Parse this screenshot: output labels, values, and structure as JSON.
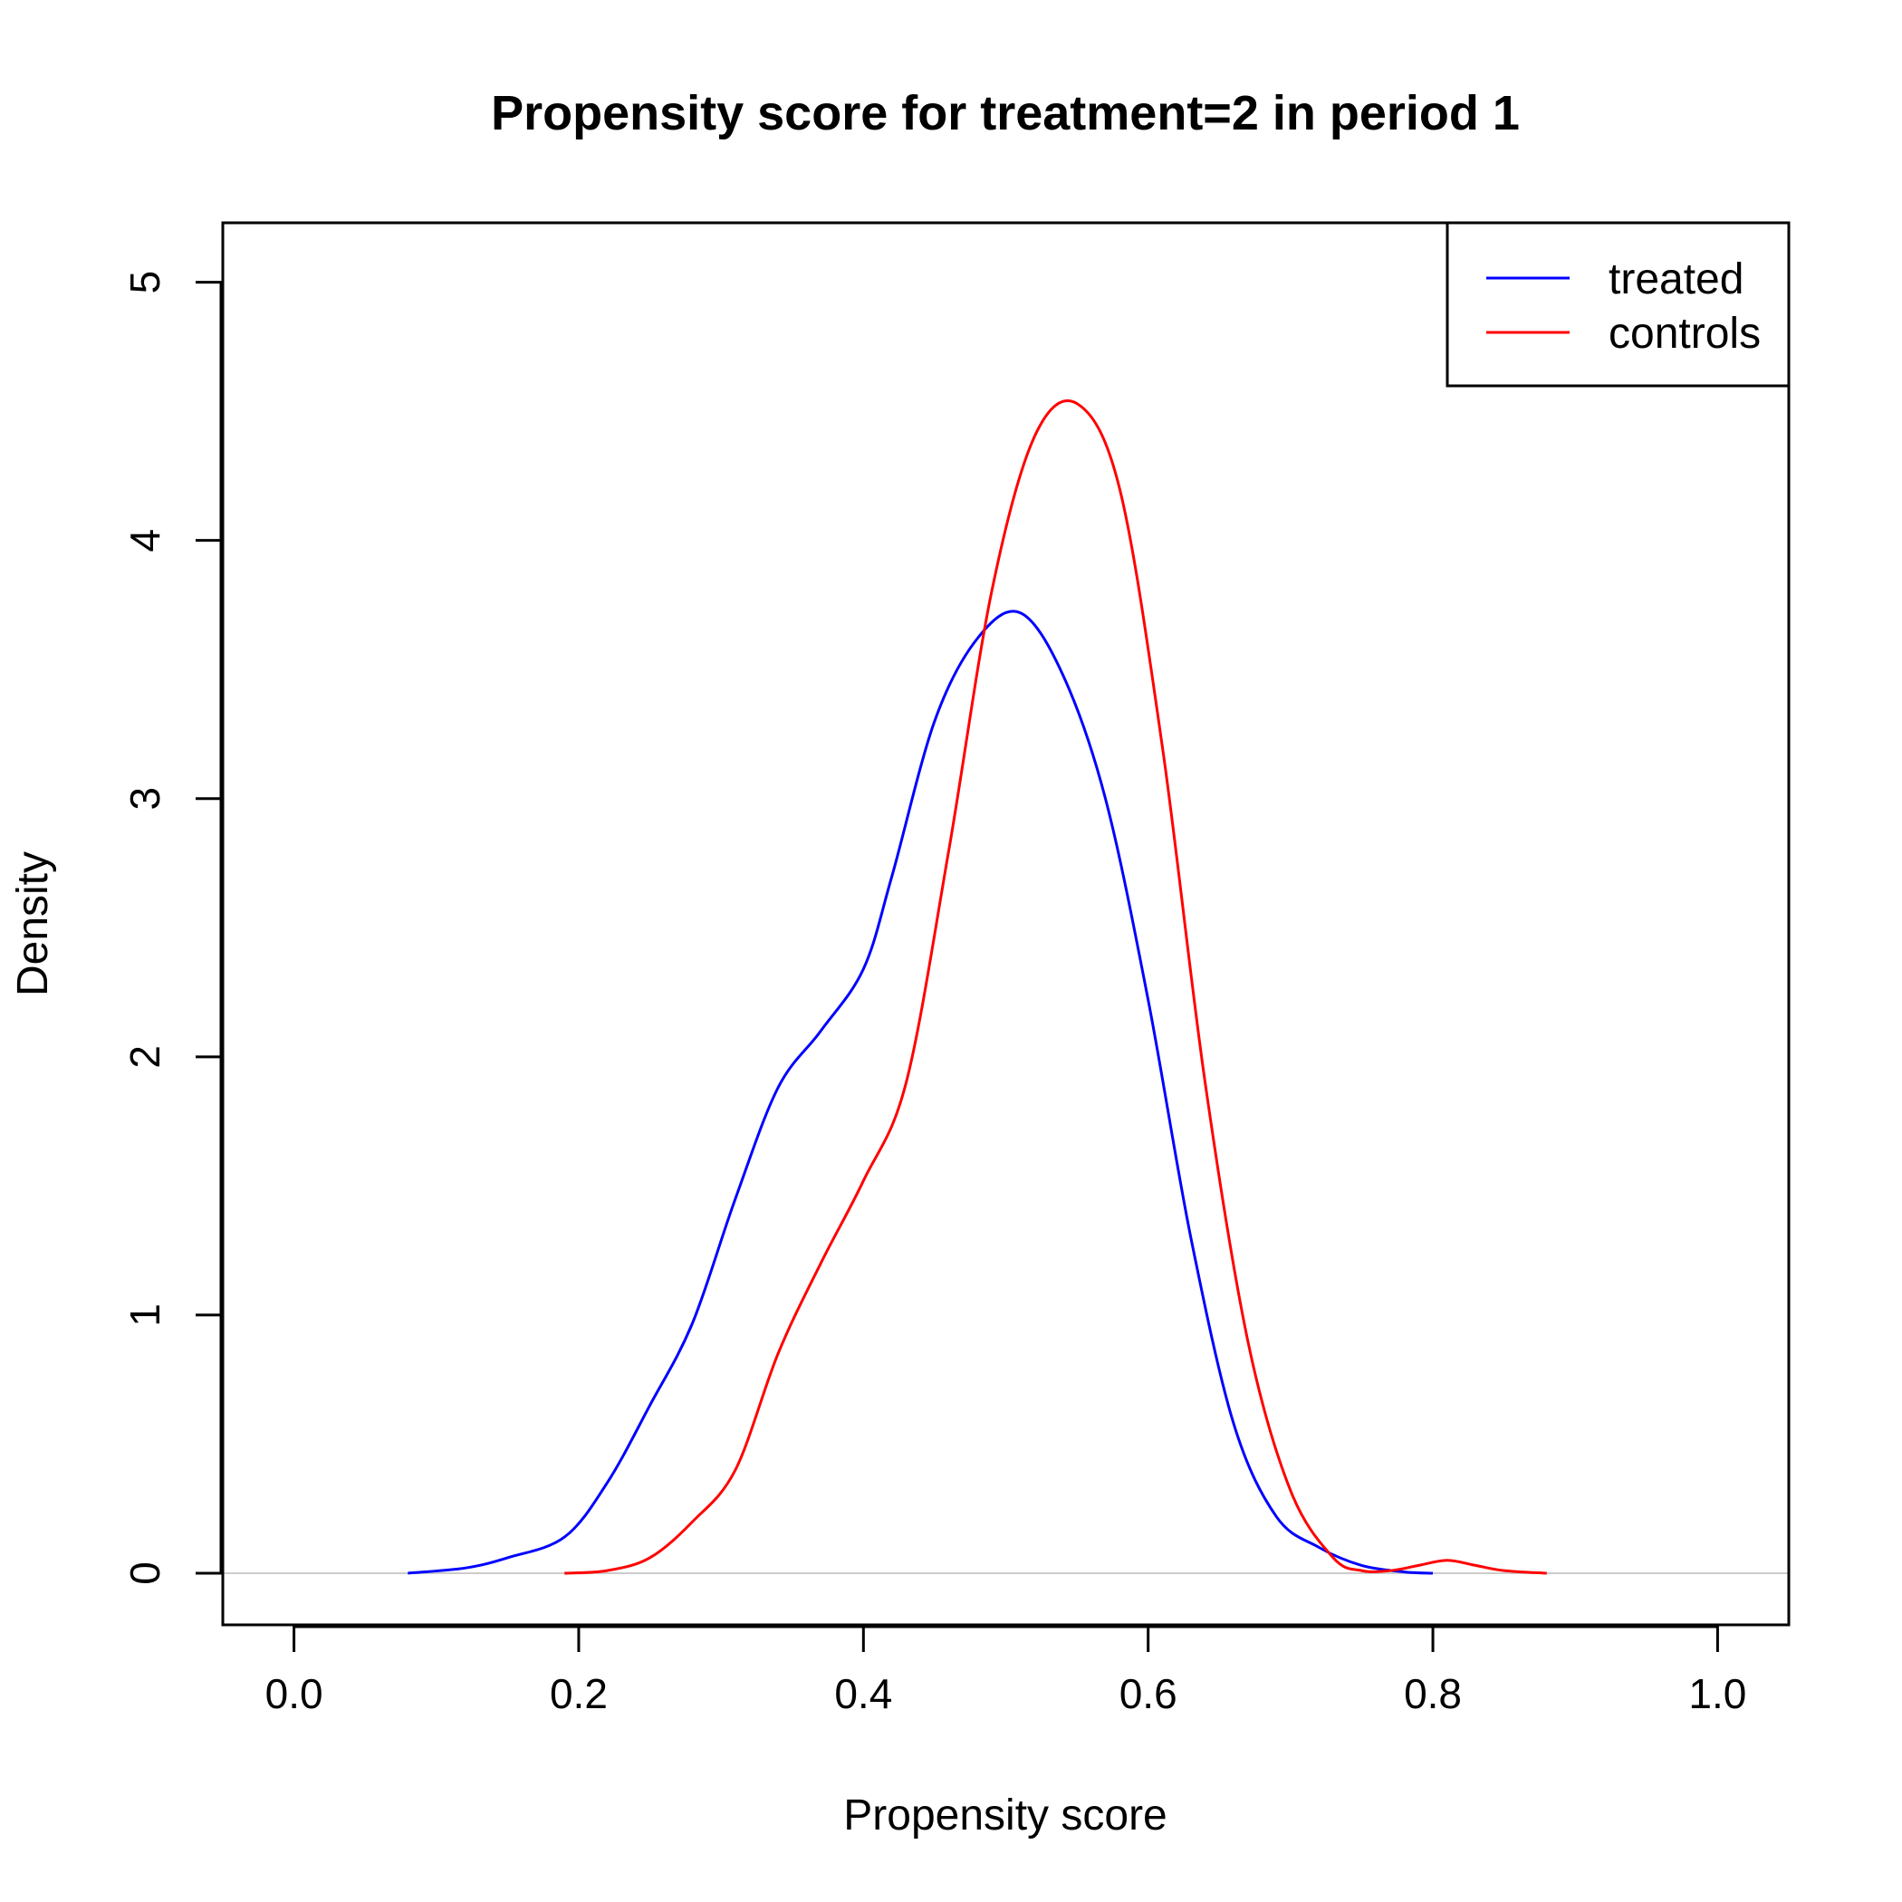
{
  "chart_data": {
    "type": "line",
    "title": "Propensity score for treatment=2 in period 1",
    "xlabel": "Propensity score",
    "ylabel": "Density",
    "xlim": [
      -0.05,
      1.05
    ],
    "ylim": [
      -0.2,
      5.23
    ],
    "xticks": [
      0.0,
      0.2,
      0.4,
      0.6,
      0.8,
      1.0
    ],
    "xtick_labels": [
      "0.0",
      "0.2",
      "0.4",
      "0.6",
      "0.8",
      "1.0"
    ],
    "yticks": [
      0,
      1,
      2,
      3,
      4,
      5
    ],
    "ytick_labels": [
      "0",
      "1",
      "2",
      "3",
      "4",
      "5"
    ],
    "baseline": 0,
    "legend": {
      "position": "top-right"
    },
    "series": [
      {
        "name": "treated",
        "color": "#0000ff",
        "x": [
          0.08,
          0.12,
          0.15,
          0.19,
          0.22,
          0.25,
          0.28,
          0.31,
          0.34,
          0.37,
          0.4,
          0.42,
          0.45,
          0.48,
          0.51,
          0.54,
          0.57,
          0.6,
          0.63,
          0.66,
          0.69,
          0.72,
          0.75,
          0.78,
          0.8
        ],
        "y": [
          0.0,
          0.02,
          0.06,
          0.14,
          0.35,
          0.65,
          0.97,
          1.45,
          1.88,
          2.1,
          2.34,
          2.7,
          3.3,
          3.62,
          3.72,
          3.48,
          3.0,
          2.22,
          1.3,
          0.58,
          0.22,
          0.1,
          0.03,
          0.005,
          0.0
        ]
      },
      {
        "name": "controls",
        "color": "#ff0000",
        "x": [
          0.19,
          0.22,
          0.25,
          0.28,
          0.31,
          0.34,
          0.37,
          0.4,
          0.43,
          0.46,
          0.49,
          0.52,
          0.55,
          0.58,
          0.61,
          0.64,
          0.67,
          0.7,
          0.73,
          0.75,
          0.77,
          0.79,
          0.81,
          0.83,
          0.85,
          0.88
        ],
        "y": [
          0.0,
          0.01,
          0.06,
          0.2,
          0.4,
          0.85,
          1.2,
          1.52,
          1.9,
          2.8,
          3.8,
          4.4,
          4.53,
          4.2,
          3.2,
          1.9,
          0.9,
          0.32,
          0.06,
          0.01,
          0.01,
          0.03,
          0.05,
          0.03,
          0.01,
          0.0
        ]
      }
    ]
  }
}
